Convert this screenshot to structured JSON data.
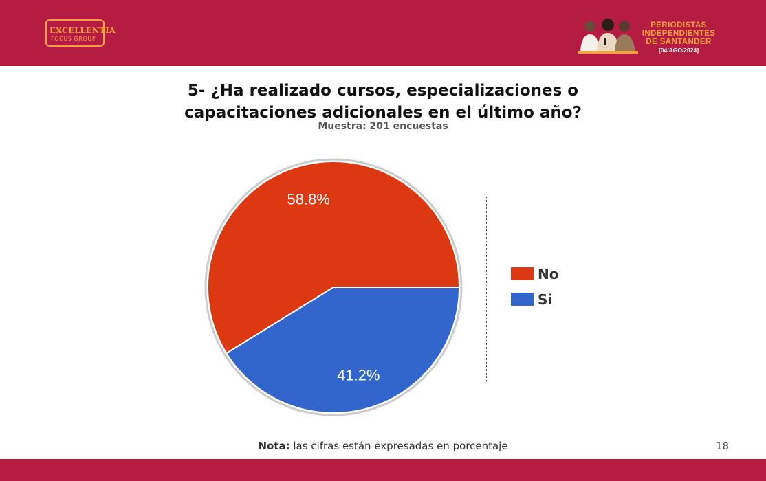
{
  "header": {
    "logo_left": {
      "name": "EXCELLENTIA",
      "sub": "FOCUS GROUP"
    },
    "logo_right": {
      "title": "PERIODISTAS\nINDEPENDIENTES\nDE SANTANDER",
      "date": "[04/AGO/2024]"
    }
  },
  "colors": {
    "brand": "#b51c42",
    "accent": "#f2a33a",
    "no": "#dc3912",
    "si": "#3366cc"
  },
  "chart_data": {
    "type": "pie",
    "title": "5- ¿Ha realizado cursos, especializaciones o\ncapacitaciones adicionales en el último año?",
    "subtitle": "Muestra: 201 encuestas",
    "categories": [
      "No",
      "Si"
    ],
    "values": [
      58.8,
      41.2
    ],
    "data_labels": [
      "58.8%",
      "41.2%"
    ],
    "colors": [
      "#dc3912",
      "#3366cc"
    ],
    "legend_position": "right"
  },
  "footer": {
    "note_label": "Nota:",
    "note_text": " las cifras están expresadas en porcentaje",
    "page_number": "18"
  }
}
